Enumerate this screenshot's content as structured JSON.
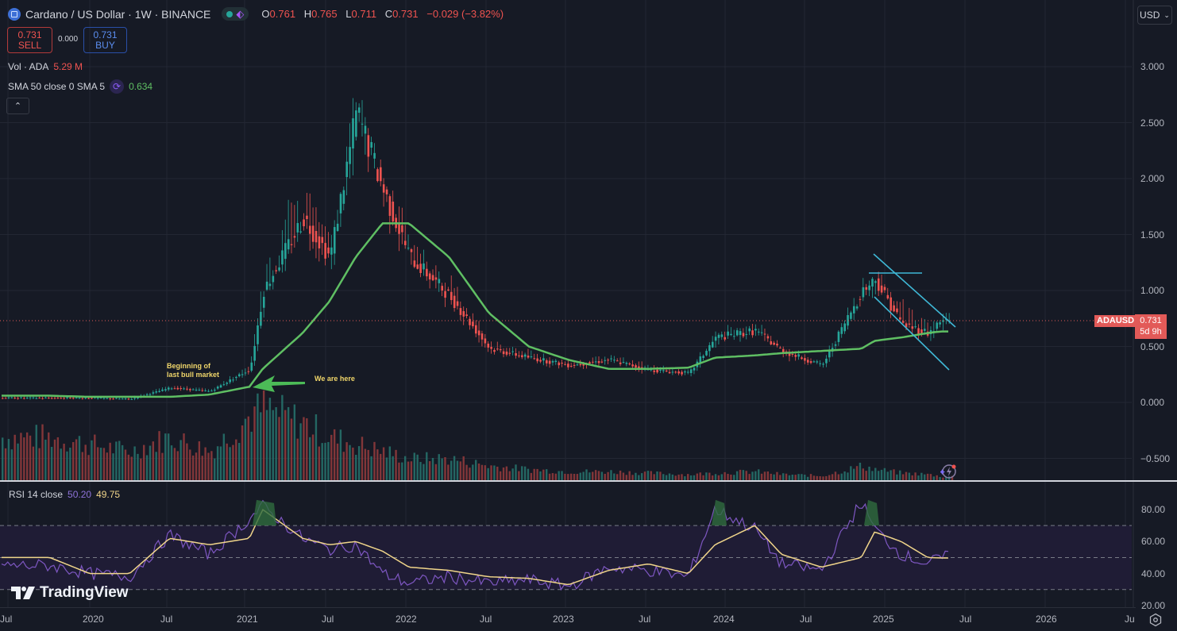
{
  "header": {
    "symbol_title": "Cardano / US Dollar · 1W · BINANCE",
    "ohlc": [
      {
        "key": "O",
        "value": "0.761"
      },
      {
        "key": "H",
        "value": "0.765"
      },
      {
        "key": "L",
        "value": "0.711"
      },
      {
        "key": "C",
        "value": "0.731"
      },
      {
        "key": "",
        "value": "−0.029 (−3.82%)"
      }
    ],
    "sell": {
      "price": "0.731",
      "label": "SELL"
    },
    "buy": {
      "price": "0.731",
      "label": "BUY"
    },
    "spread": "0.000",
    "volume_legend": {
      "label": "Vol · ADA",
      "value": "5.29 M"
    },
    "sma_legend": {
      "label": "SMA 50 close 0 SMA 5",
      "value": "0.634"
    },
    "collapse_icon": "chevron-up-icon",
    "currency": "USD"
  },
  "price_axis": {
    "ticks": [
      "3.000",
      "2.500",
      "2.000",
      "1.500",
      "1.000",
      "0.500",
      "0.000",
      "-0.500"
    ],
    "last_price": "0.731",
    "countdown": "5d 9h",
    "symbol_tag": "ADAUSD"
  },
  "annotations": {
    "bull_text_line1": "Beginning of",
    "bull_text_line2": "last bull market",
    "here_text": "We are here"
  },
  "rsi": {
    "legend_label": "RSI 14 close",
    "rsi_value": "50.20",
    "ma_value": "49.75",
    "ticks": [
      "80.00",
      "60.00",
      "40.00",
      "20.00"
    ]
  },
  "time_axis": {
    "ticks": [
      "Jul",
      "2020",
      "Jul",
      "2021",
      "Jul",
      "2022",
      "Jul",
      "2023",
      "Jul",
      "2024",
      "Jul",
      "2025",
      "Jul",
      "2026",
      "Ju"
    ]
  },
  "branding": {
    "logo_text": "TradingView"
  },
  "colors": {
    "up": "#26a69a",
    "down": "#ef5350",
    "sma": "#5fbf63",
    "rsi": "#7e57c2",
    "rsi_ma": "#f0d58a",
    "channel": "#3fb8d6",
    "background": "#161a25"
  },
  "chart_data": {
    "type": "candlestick",
    "title": "Cardano / US Dollar · 1W · BINANCE",
    "xlabel": "",
    "ylabel": "USD",
    "ylim": [
      -0.6,
      3.2
    ],
    "grid": true,
    "legend_position": "top-left",
    "x_dates": [
      "2019-10",
      "2020-01",
      "2020-04",
      "2020-07",
      "2020-10",
      "2021-01",
      "2021-02",
      "2021-05",
      "2021-07",
      "2021-09",
      "2021-11",
      "2022-01",
      "2022-04",
      "2022-07",
      "2022-10",
      "2023-01",
      "2023-04",
      "2023-07",
      "2023-10",
      "2023-12",
      "2024-03",
      "2024-05",
      "2024-08",
      "2024-11",
      "2024-12",
      "2025-02",
      "2025-04",
      "2025-05"
    ],
    "price_close": [
      0.04,
      0.04,
      0.03,
      0.13,
      0.1,
      0.3,
      1.0,
      1.65,
      1.3,
      2.6,
      1.9,
      1.3,
      0.95,
      0.48,
      0.4,
      0.33,
      0.38,
      0.29,
      0.26,
      0.58,
      0.64,
      0.46,
      0.33,
      1.0,
      1.1,
      0.7,
      0.62,
      0.73
    ],
    "price_high": [
      0.05,
      0.05,
      0.05,
      0.16,
      0.12,
      0.38,
      1.47,
      2.5,
      1.55,
      3.1,
      2.2,
      1.63,
      1.25,
      0.62,
      0.5,
      0.4,
      0.45,
      0.39,
      0.29,
      0.68,
      0.8,
      0.5,
      0.4,
      1.15,
      1.2,
      1.15,
      0.8,
      0.85
    ],
    "sma50": [
      0.06,
      0.05,
      0.05,
      0.05,
      0.07,
      0.14,
      0.3,
      0.62,
      0.9,
      1.3,
      1.6,
      1.6,
      1.3,
      0.8,
      0.5,
      0.38,
      0.3,
      0.3,
      0.31,
      0.4,
      0.42,
      0.44,
      0.46,
      0.48,
      0.55,
      0.58,
      0.62,
      0.634
    ],
    "volume_relative": [
      0.6,
      0.5,
      0.4,
      0.6,
      0.4,
      0.9,
      1.0,
      0.8,
      0.6,
      0.5,
      0.4,
      0.3,
      0.3,
      0.2,
      0.15,
      0.12,
      0.12,
      0.1,
      0.08,
      0.1,
      0.12,
      0.08,
      0.06,
      0.2,
      0.15,
      0.1,
      0.08,
      0.05
    ],
    "rsi14": [
      45,
      40,
      38,
      64,
      52,
      74,
      82,
      62,
      55,
      58,
      40,
      34,
      38,
      34,
      36,
      32,
      44,
      42,
      38,
      80,
      68,
      46,
      42,
      85,
      68,
      52,
      46,
      50.2
    ],
    "rsi_ma": [
      50,
      40,
      40,
      62,
      58,
      62,
      80,
      62,
      58,
      60,
      54,
      44,
      42,
      38,
      37,
      33,
      42,
      46,
      40,
      58,
      70,
      52,
      44,
      50,
      66,
      60,
      50,
      49.75
    ],
    "rsi_levels": {
      "overbought": 70,
      "middle": 50,
      "oversold": 30
    },
    "price_ticks": [
      -0.5,
      0,
      0.5,
      1.0,
      1.5,
      2.0,
      2.5,
      3.0
    ],
    "rsi_ticks": [
      20,
      40,
      60,
      80
    ],
    "drawings": [
      {
        "type": "text",
        "text": "Beginning of last bull market"
      },
      {
        "type": "arrow",
        "text": "We are here"
      },
      {
        "type": "descending_channel",
        "from": "2024-12",
        "to": "2025-05"
      },
      {
        "type": "horizontal_segment",
        "level": 1.15
      }
    ]
  }
}
